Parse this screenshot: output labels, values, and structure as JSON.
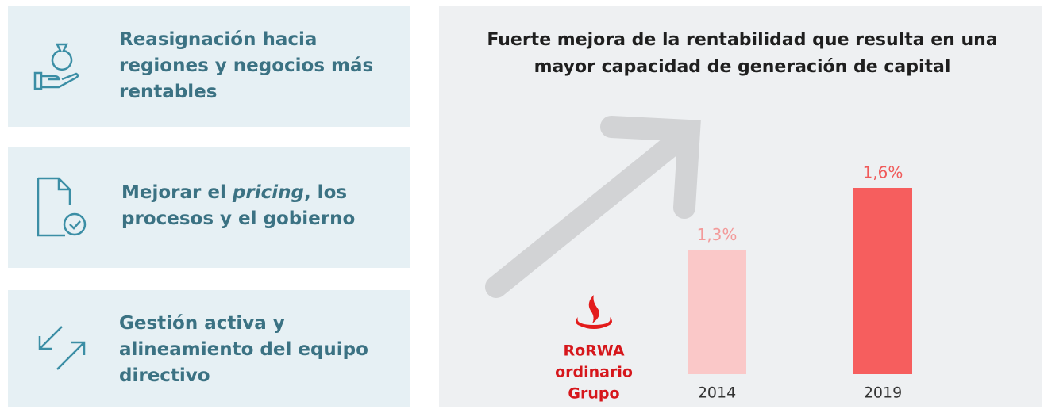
{
  "items": [
    {
      "text": "Reasignación hacia regiones y negocios más rentables"
    },
    {
      "before": "Mejorar el ",
      "em": "pricing",
      "after": ", los procesos y el gobierno"
    },
    {
      "text": "Gestión activa y alineamiento del equipo directivo"
    }
  ],
  "chart_data": {
    "type": "bar",
    "title": "Fuerte mejora de la rentabilidad que resulta en una mayor capacidad de generación de capital",
    "legend": [
      "RoRWA",
      "ordinario",
      "Grupo"
    ],
    "categories": [
      "2014",
      "2019"
    ],
    "values": [
      1.3,
      1.6
    ],
    "value_labels": [
      "1,3%",
      "1,6%"
    ],
    "colors": [
      "#fac8c8",
      "#f65e5e"
    ],
    "label_colors": [
      "#f39a9a",
      "#f05a5a"
    ],
    "ylim": [
      0.7,
      1.6
    ]
  }
}
